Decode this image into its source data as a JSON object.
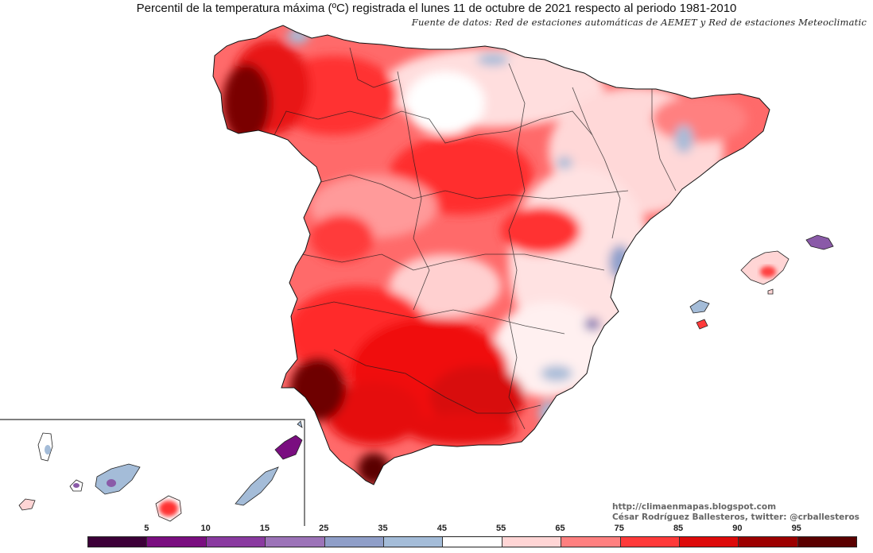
{
  "map": {
    "title": "Percentil de la temperatura máxima (ºC) registrada el lunes 11 de octubre de 2021 respecto al periodo 1981-2010",
    "subtitle": "Fuente de datos: Red de estaciones automáticas de AEMET y Red de estaciones Meteoclimatic",
    "credits": {
      "url": "http://climaenmapas.blogspot.com",
      "author": "César Rodríguez Ballesteros, twitter: @crballesteros"
    }
  },
  "legend": {
    "colors": [
      "#3c0038",
      "#7a0e80",
      "#8a3aa0",
      "#9c73b8",
      "#8f9ec8",
      "#a4bcd8",
      "#ffffff",
      "#ffd5d5",
      "#ff8080",
      "#ff3a3a",
      "#dd0a0a",
      "#9c0000",
      "#5a0000"
    ],
    "labels": [
      {
        "text": "5",
        "boundary": 1
      },
      {
        "text": "10",
        "boundary": 2
      },
      {
        "text": "15",
        "boundary": 3
      },
      {
        "text": "25",
        "boundary": 4
      },
      {
        "text": "35",
        "boundary": 5
      },
      {
        "text": "45",
        "boundary": 6
      },
      {
        "text": "55",
        "boundary": 7
      },
      {
        "text": "65",
        "boundary": 8
      },
      {
        "text": "75",
        "boundary": 9
      },
      {
        "text": "85",
        "boundary": 10
      },
      {
        "text": "90",
        "boundary": 11
      },
      {
        "text": "95",
        "boundary": 12
      }
    ]
  }
}
